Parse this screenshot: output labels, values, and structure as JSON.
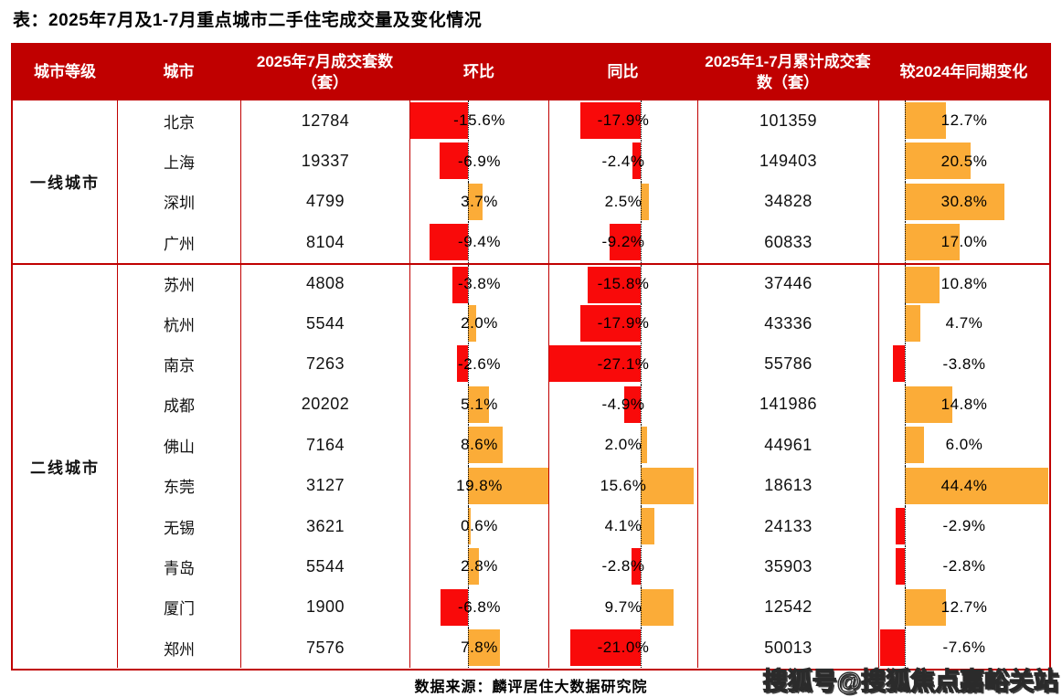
{
  "title": "表：2025年7月及1-7月重点城市二手住宅成交量及变化情况",
  "colors": {
    "header_bg": "#c00000",
    "grid": "#c00000",
    "bar_negative": "#f90a0a",
    "bar_positive": "#fbac38",
    "header_text": "#ffffff",
    "body_text": "#111111"
  },
  "table": {
    "headers": [
      "城市等级",
      "城市",
      "2025年7月成交套数（套）",
      "环比",
      "同比",
      "2025年1-7月累计成交套数（套）",
      "较2024年同期变化"
    ],
    "tiers": [
      {
        "label": "一线城市",
        "row_span": 4
      },
      {
        "label": "二线城市",
        "row_span": 10
      }
    ],
    "rows": [
      {
        "city": "北京",
        "jul": "12784",
        "mom": -15.6,
        "mom_label": "-15.6%",
        "yoy": -17.9,
        "yoy_label": "-17.9%",
        "cum": "101359",
        "ytd": 12.7,
        "ytd_label": "12.7%"
      },
      {
        "city": "上海",
        "jul": "19337",
        "mom": -6.9,
        "mom_label": "-6.9%",
        "yoy": -2.4,
        "yoy_label": "-2.4%",
        "cum": "149403",
        "ytd": 20.5,
        "ytd_label": "20.5%"
      },
      {
        "city": "深圳",
        "jul": "4799",
        "mom": 3.7,
        "mom_label": "3.7%",
        "yoy": 2.5,
        "yoy_label": "2.5%",
        "cum": "34828",
        "ytd": 30.8,
        "ytd_label": "30.8%"
      },
      {
        "city": "广州",
        "jul": "8104",
        "mom": -9.4,
        "mom_label": "-9.4%",
        "yoy": -9.2,
        "yoy_label": "-9.2%",
        "cum": "60833",
        "ytd": 17.0,
        "ytd_label": "17.0%"
      },
      {
        "city": "苏州",
        "jul": "4808",
        "mom": -3.8,
        "mom_label": "-3.8%",
        "yoy": -15.8,
        "yoy_label": "-15.8%",
        "cum": "37446",
        "ytd": 10.8,
        "ytd_label": "10.8%"
      },
      {
        "city": "杭州",
        "jul": "5544",
        "mom": 2.0,
        "mom_label": "2.0%",
        "yoy": -17.9,
        "yoy_label": "-17.9%",
        "cum": "43336",
        "ytd": 4.7,
        "ytd_label": "4.7%"
      },
      {
        "city": "南京",
        "jul": "7263",
        "mom": -2.6,
        "mom_label": "-2.6%",
        "yoy": -27.1,
        "yoy_label": "-27.1%",
        "cum": "55786",
        "ytd": -3.8,
        "ytd_label": "-3.8%"
      },
      {
        "city": "成都",
        "jul": "20202",
        "mom": 5.1,
        "mom_label": "5.1%",
        "yoy": -4.9,
        "yoy_label": "-4.9%",
        "cum": "141986",
        "ytd": 14.8,
        "ytd_label": "14.8%"
      },
      {
        "city": "佛山",
        "jul": "7164",
        "mom": 8.6,
        "mom_label": "8.6%",
        "yoy": 2.0,
        "yoy_label": "2.0%",
        "cum": "44961",
        "ytd": 6.0,
        "ytd_label": "6.0%"
      },
      {
        "city": "东莞",
        "jul": "3127",
        "mom": 19.8,
        "mom_label": "19.8%",
        "yoy": 15.6,
        "yoy_label": "15.6%",
        "cum": "18613",
        "ytd": 44.4,
        "ytd_label": "44.4%"
      },
      {
        "city": "无锡",
        "jul": "3621",
        "mom": 0.6,
        "mom_label": "0.6%",
        "yoy": 4.1,
        "yoy_label": "4.1%",
        "cum": "24133",
        "ytd": -2.9,
        "ytd_label": "-2.9%"
      },
      {
        "city": "青岛",
        "jul": "5544",
        "mom": 2.8,
        "mom_label": "2.8%",
        "yoy": -2.8,
        "yoy_label": "-2.8%",
        "cum": "35903",
        "ytd": -2.8,
        "ytd_label": "-2.8%"
      },
      {
        "city": "厦门",
        "jul": "1900",
        "mom": -6.8,
        "mom_label": "-6.8%",
        "yoy": 9.7,
        "yoy_label": "9.7%",
        "cum": "12542",
        "ytd": 12.7,
        "ytd_label": "12.7%"
      },
      {
        "city": "郑州",
        "jul": "7576",
        "mom": 7.8,
        "mom_label": "7.8%",
        "yoy": -21.0,
        "yoy_label": "-21.0%",
        "cum": "50013",
        "ytd": -7.6,
        "ytd_label": "-7.6%"
      }
    ]
  },
  "footer": {
    "source": "数据来源：麟评居住大数据研究院",
    "watermark": "搜狐号@搜狐焦点嘉峪关站"
  },
  "chart_data": {
    "type": "table",
    "title": "表：2025年7月及1-7月重点城市二手住宅成交量及变化情况",
    "columns": [
      "城市等级",
      "城市",
      "2025年7月成交套数（套）",
      "环比",
      "同比",
      "2025年1-7月累计成交套数（套）",
      "较2024年同期变化"
    ],
    "bar_columns": [
      "环比",
      "同比",
      "较2024年同期变化"
    ],
    "bar_style": "in-cell horizontal bars from dotted zero baseline; positive = orange right, negative = red left",
    "rows": [
      [
        "一线城市",
        "北京",
        12784,
        -15.6,
        -17.9,
        101359,
        12.7
      ],
      [
        "一线城市",
        "上海",
        19337,
        -6.9,
        -2.4,
        149403,
        20.5
      ],
      [
        "一线城市",
        "深圳",
        4799,
        3.7,
        2.5,
        34828,
        30.8
      ],
      [
        "一线城市",
        "广州",
        8104,
        -9.4,
        -9.2,
        60833,
        17.0
      ],
      [
        "二线城市",
        "苏州",
        4808,
        -3.8,
        -15.8,
        37446,
        10.8
      ],
      [
        "二线城市",
        "杭州",
        5544,
        2.0,
        -17.9,
        43336,
        4.7
      ],
      [
        "二线城市",
        "南京",
        7263,
        -2.6,
        -27.1,
        55786,
        -3.8
      ],
      [
        "二线城市",
        "成都",
        20202,
        5.1,
        -4.9,
        141986,
        14.8
      ],
      [
        "二线城市",
        "佛山",
        7164,
        8.6,
        2.0,
        44961,
        6.0
      ],
      [
        "二线城市",
        "东莞",
        3127,
        19.8,
        15.6,
        18613,
        44.4
      ],
      [
        "二线城市",
        "无锡",
        3621,
        0.6,
        4.1,
        24133,
        -2.9
      ],
      [
        "二线城市",
        "青岛",
        5544,
        2.8,
        -2.8,
        35903,
        -2.8
      ],
      [
        "二线城市",
        "厦门",
        1900,
        -6.8,
        9.7,
        12542,
        12.7
      ],
      [
        "二线城市",
        "郑州",
        7576,
        7.8,
        -21.0,
        50013,
        -7.6
      ]
    ],
    "source": "数据来源：麟评居住大数据研究院"
  }
}
